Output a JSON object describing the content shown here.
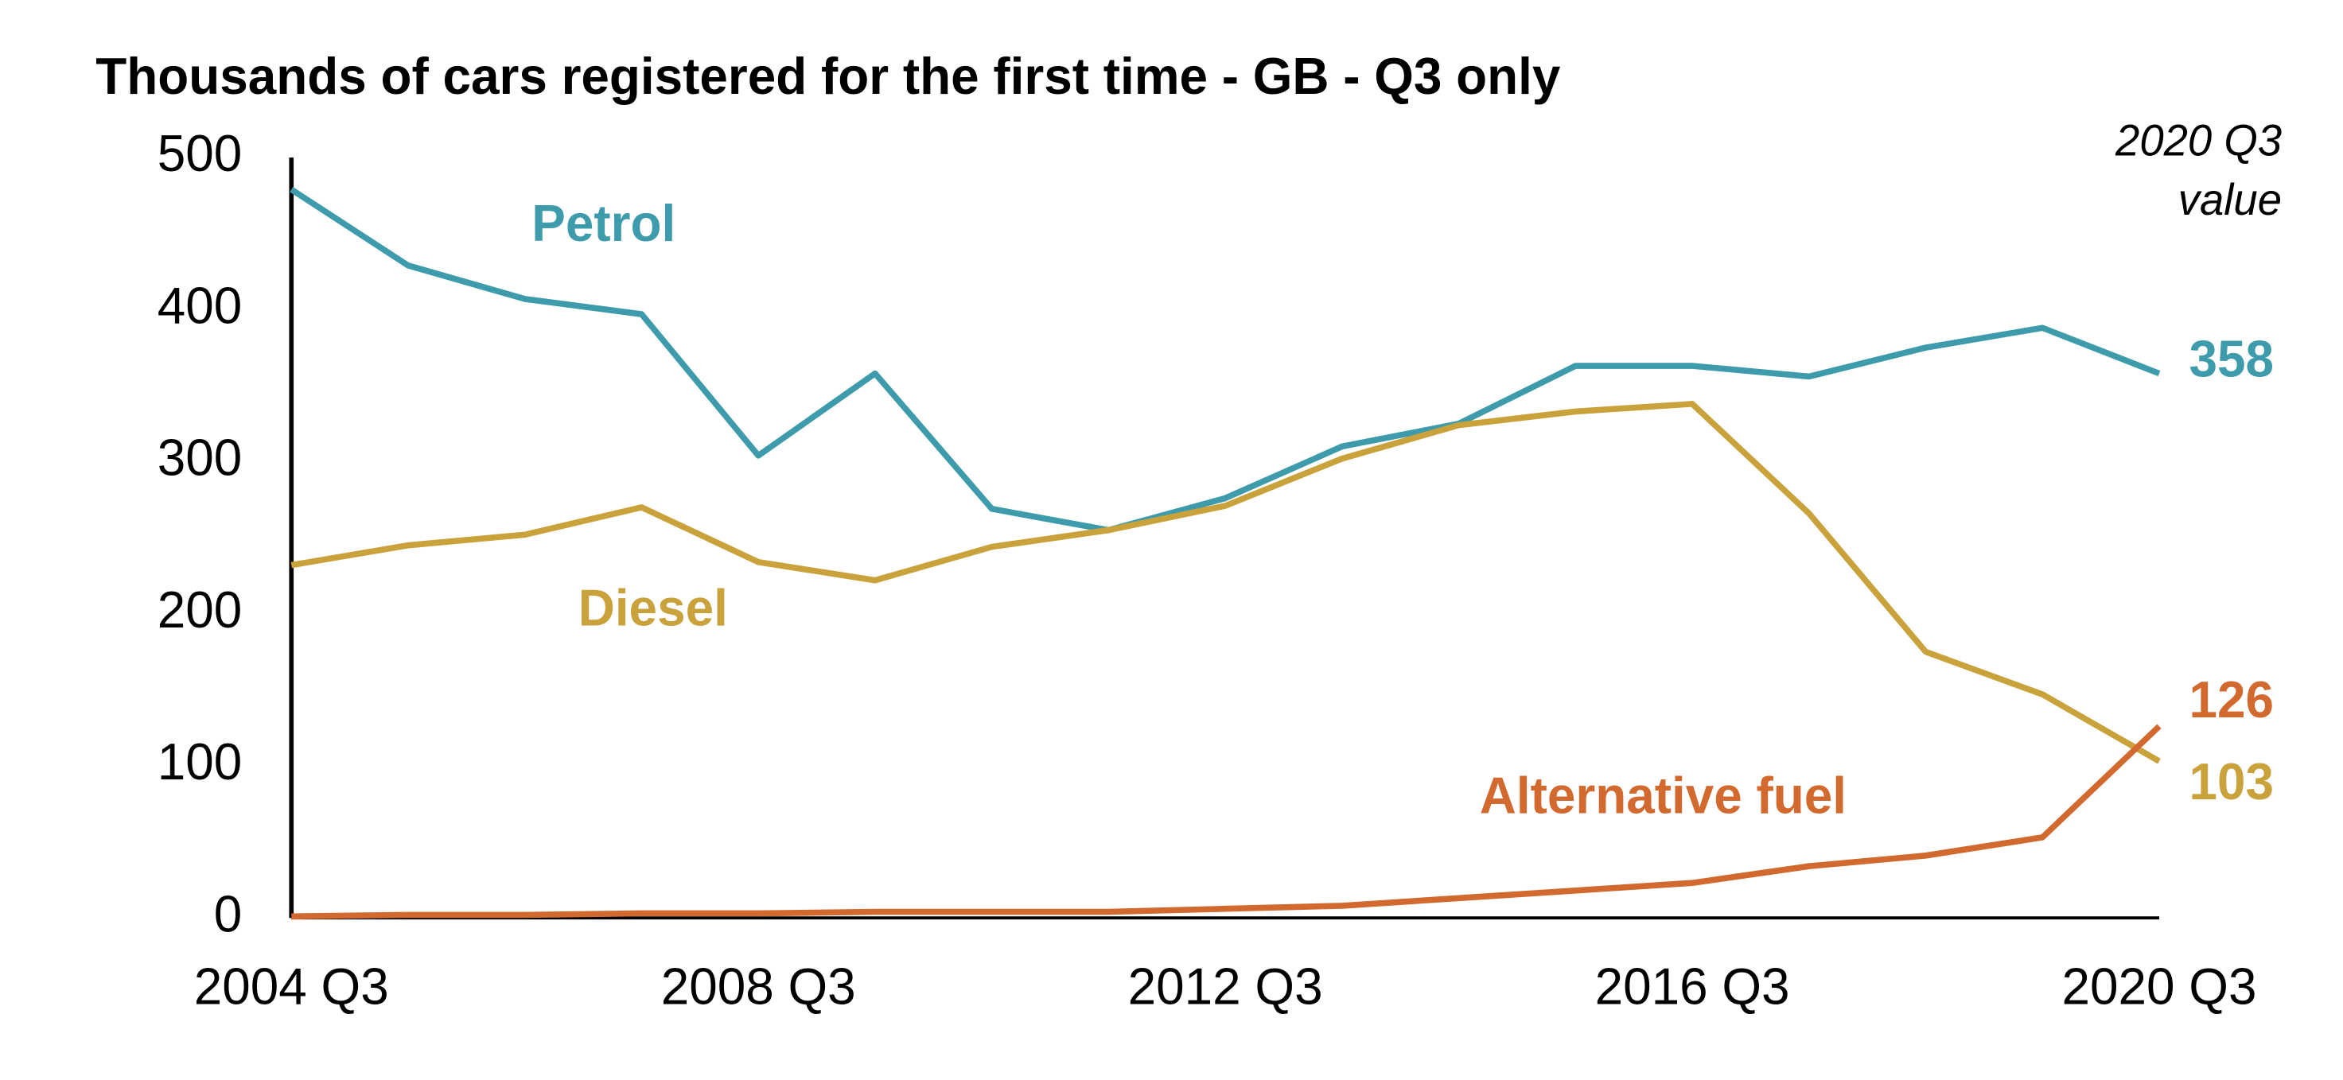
{
  "chart_data": {
    "type": "line",
    "title": "Thousands of cars registered for the first time - GB - Q3 only",
    "annotation": [
      "2020 Q3",
      "value"
    ],
    "categories": [
      "2004 Q3",
      null,
      null,
      null,
      "2008 Q3",
      null,
      null,
      null,
      "2012 Q3",
      null,
      null,
      null,
      "2016 Q3",
      null,
      null,
      null,
      "2020 Q3"
    ],
    "series": [
      {
        "name": "Petrol",
        "color": "#3d9bab",
        "values": [
          479,
          429,
          407,
          397,
          304,
          358,
          269,
          255,
          276,
          310,
          325,
          363,
          363,
          356,
          375,
          388,
          358
        ]
      },
      {
        "name": "Diesel",
        "color": "#c9a23c",
        "values": [
          232,
          245,
          252,
          270,
          234,
          222,
          244,
          255,
          271,
          302,
          324,
          333,
          338,
          266,
          175,
          147,
          103
        ]
      },
      {
        "name": "Alternative fuel",
        "color": "#d2692f",
        "values": [
          1,
          2,
          2,
          3,
          3,
          4,
          4,
          4,
          6,
          8,
          13,
          18,
          23,
          34,
          41,
          53,
          126
        ]
      }
    ],
    "ylim": [
      0,
      500
    ],
    "yticks": [
      0,
      100,
      200,
      300,
      400,
      500
    ],
    "grid": false
  }
}
